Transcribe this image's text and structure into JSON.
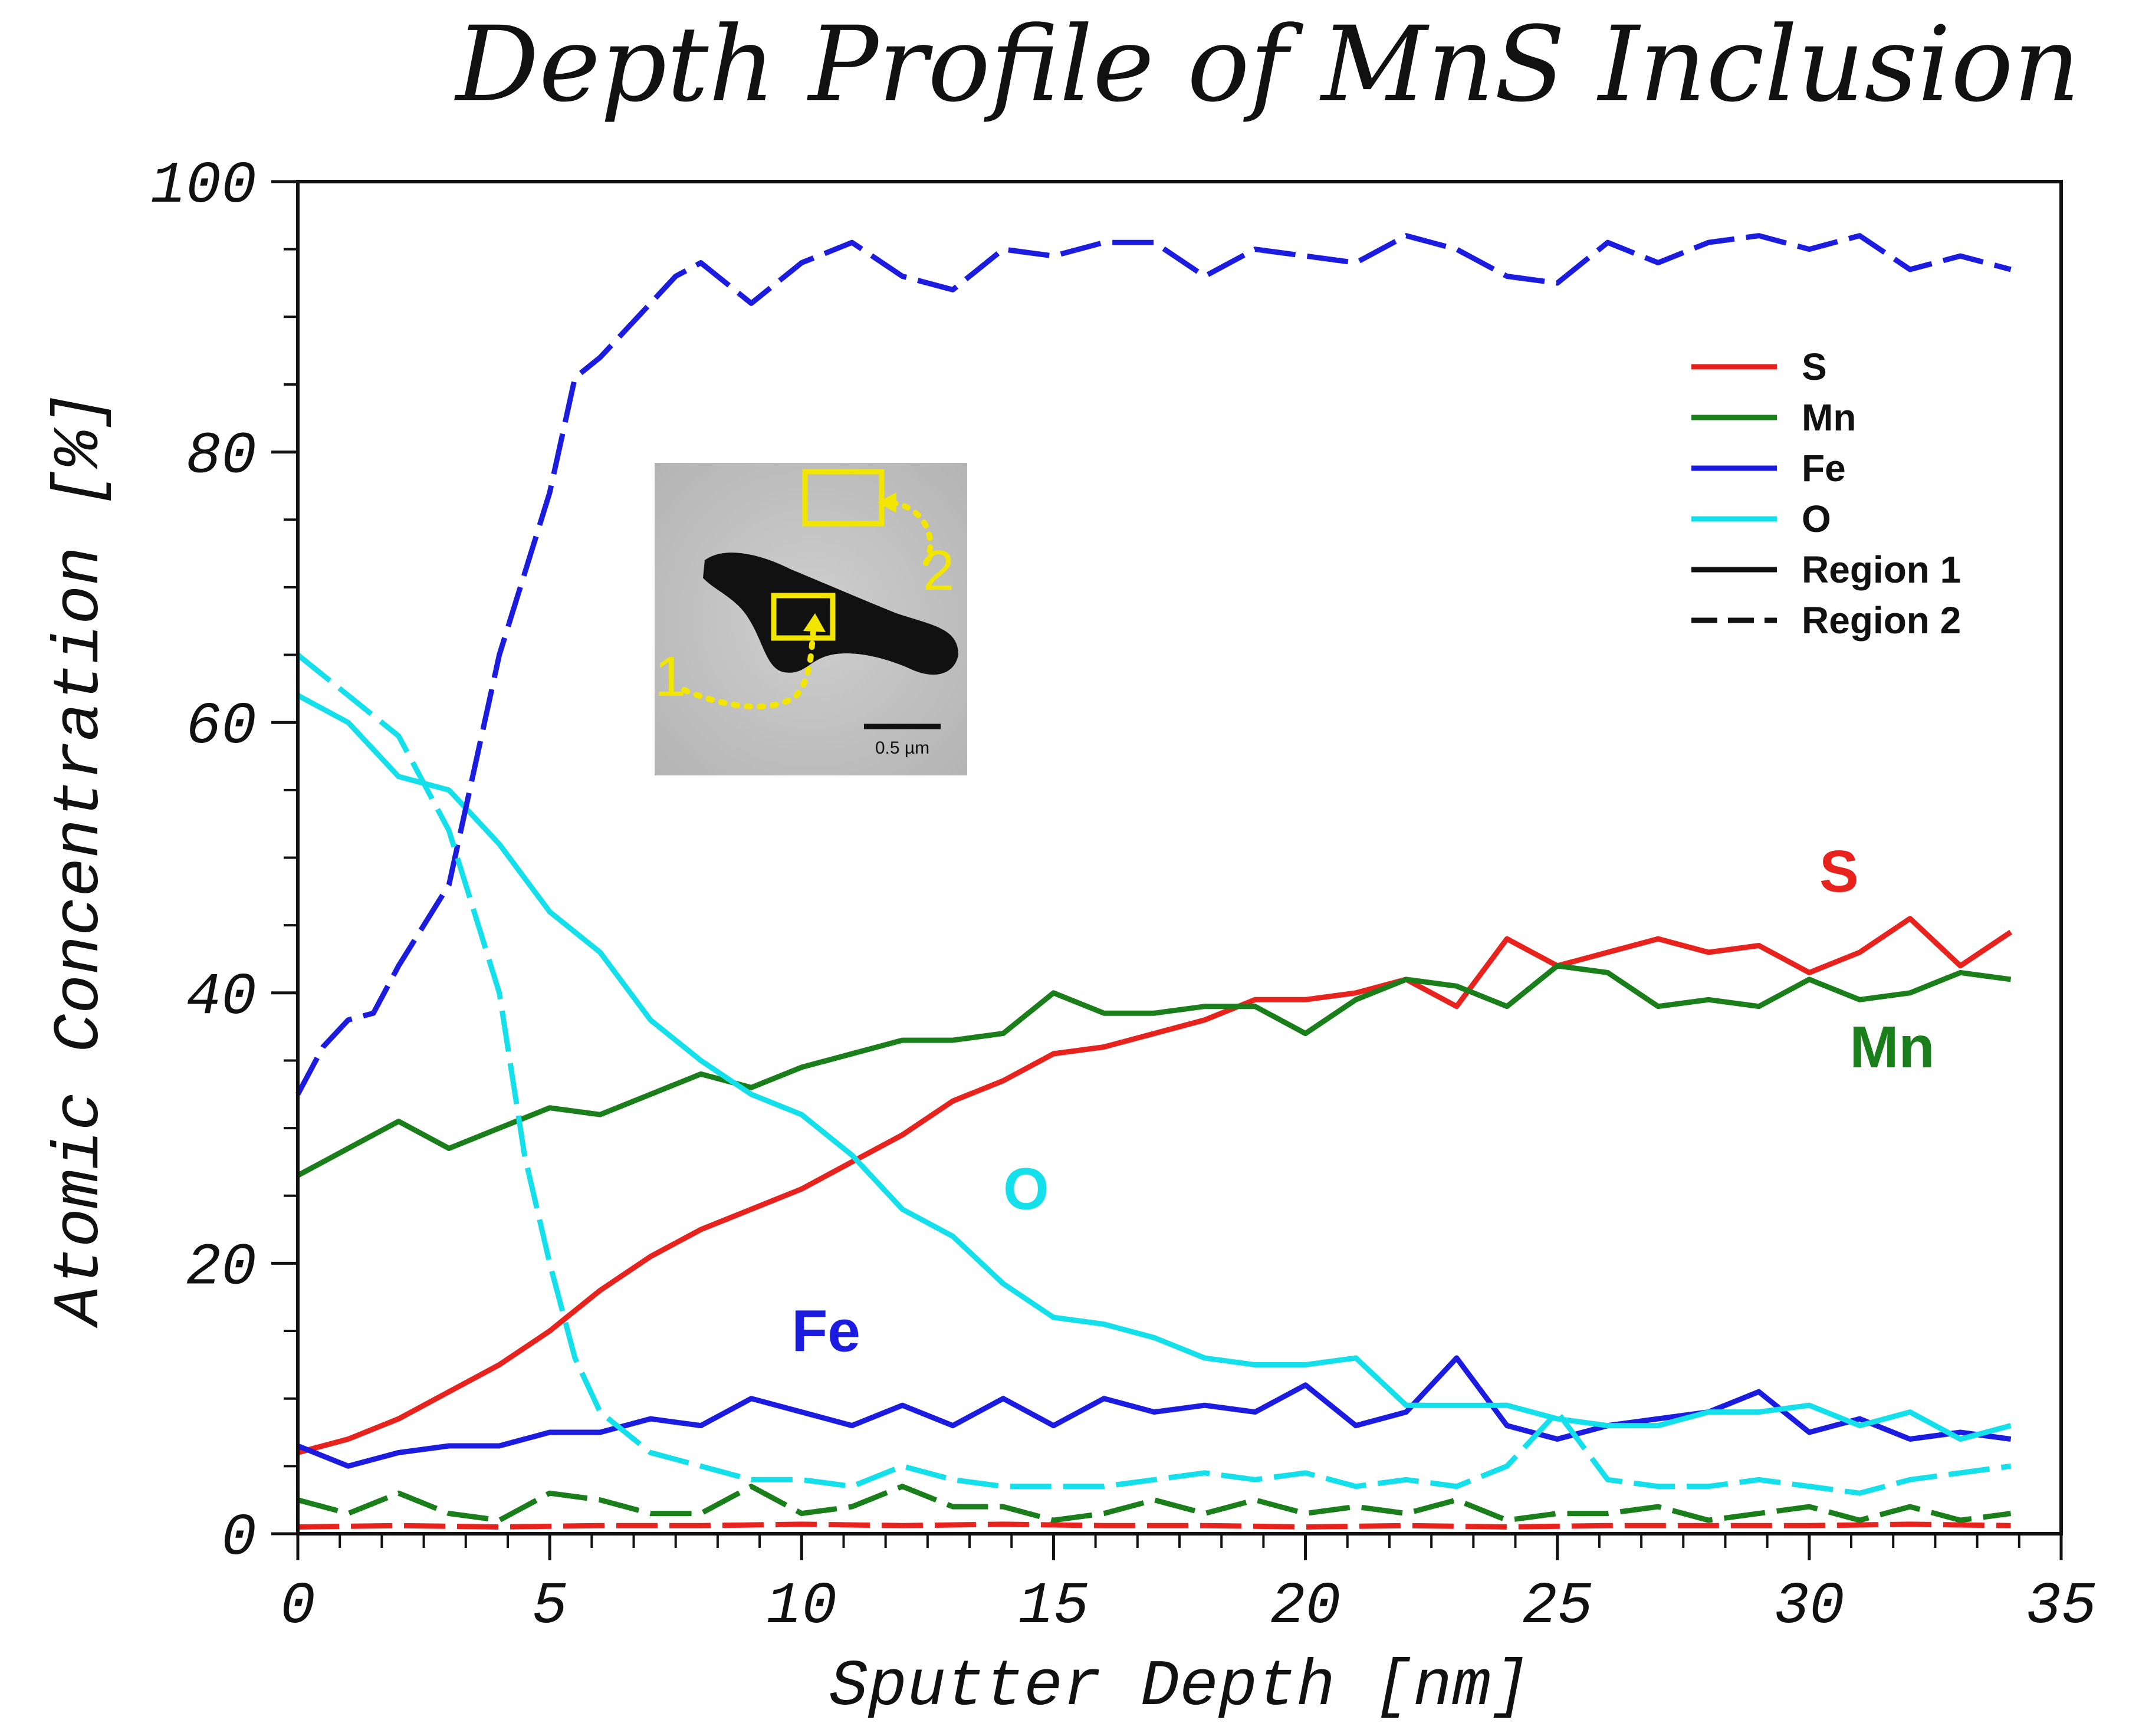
{
  "chart_data": {
    "type": "line",
    "title": "Depth Profile of MnS Inclusion",
    "xlabel": "Sputter Depth [nm]",
    "ylabel": "Atomic Concentration [%]",
    "xlim": [
      0,
      35
    ],
    "ylim": [
      0,
      100
    ],
    "xticks": [
      0,
      5,
      10,
      15,
      20,
      25,
      30,
      35
    ],
    "yticks": [
      0,
      20,
      40,
      60,
      80,
      100
    ],
    "grid": false,
    "legend_position": "top-right",
    "legend": [
      {
        "label": "S",
        "color": "#e8231e",
        "style": "solid"
      },
      {
        "label": "Mn",
        "color": "#1a7f1a",
        "style": "solid"
      },
      {
        "label": "Fe",
        "color": "#1c1ce0",
        "style": "solid"
      },
      {
        "label": "O",
        "color": "#13e0ea",
        "style": "solid"
      },
      {
        "label": "Region 1",
        "color": "#111111",
        "style": "solid"
      },
      {
        "label": "Region 2",
        "color": "#111111",
        "style": "dashed"
      }
    ],
    "annotations": [
      {
        "text": "S",
        "color": "#e8231e",
        "x": 30.2,
        "y": 47.5
      },
      {
        "text": "Mn",
        "color": "#1a7f1a",
        "x": 30.8,
        "y": 34.5
      },
      {
        "text": "O",
        "color": "#13e0ea",
        "x": 14.0,
        "y": 24.0
      },
      {
        "text": "Fe",
        "color": "#1c1ce0",
        "x": 9.8,
        "y": 13.5
      }
    ],
    "inset": {
      "labels": [
        "1",
        "2"
      ],
      "scale_bar": "0.5 µm"
    },
    "series": [
      {
        "element": "S",
        "region": "Region 1",
        "color": "#e8231e",
        "style": "solid",
        "x": [
          0,
          1,
          2,
          3,
          4,
          5,
          6,
          7,
          8,
          9,
          10,
          11,
          12,
          13,
          14,
          15,
          16,
          17,
          18,
          19,
          20,
          21,
          22,
          23,
          24,
          25,
          26,
          27,
          28,
          29,
          30,
          31,
          32,
          33,
          34
        ],
        "y": [
          6,
          7,
          8.5,
          10.5,
          12.5,
          15,
          18,
          20.5,
          22.5,
          24,
          25.5,
          27.5,
          29.5,
          32,
          33.5,
          35.5,
          36,
          37,
          38,
          39.5,
          39.5,
          40,
          41,
          39,
          44,
          42,
          43,
          44,
          43,
          43.5,
          41.5,
          43,
          45.5,
          42,
          44.5
        ]
      },
      {
        "element": "Mn",
        "region": "Region 1",
        "color": "#1a7f1a",
        "style": "solid",
        "x": [
          0,
          1,
          2,
          3,
          4,
          5,
          6,
          7,
          8,
          9,
          10,
          11,
          12,
          13,
          14,
          15,
          16,
          17,
          18,
          19,
          20,
          21,
          22,
          23,
          24,
          25,
          26,
          27,
          28,
          29,
          30,
          31,
          32,
          33,
          34
        ],
        "y": [
          26.5,
          28.5,
          30.5,
          28.5,
          30,
          31.5,
          31,
          32.5,
          34,
          33,
          34.5,
          35.5,
          36.5,
          36.5,
          37,
          40,
          38.5,
          38.5,
          39,
          39,
          37,
          39.5,
          41,
          40.5,
          39,
          42,
          41.5,
          39,
          39.5,
          39,
          41,
          39.5,
          40,
          41.5,
          41
        ]
      },
      {
        "element": "Fe",
        "region": "Region 1",
        "color": "#1c1ce0",
        "style": "solid",
        "x": [
          0,
          1,
          2,
          3,
          4,
          5,
          6,
          7,
          8,
          9,
          10,
          11,
          12,
          13,
          14,
          15,
          16,
          17,
          18,
          19,
          20,
          21,
          22,
          23,
          24,
          25,
          26,
          27,
          28,
          29,
          30,
          31,
          32,
          33,
          34
        ],
        "y": [
          6.5,
          5,
          6,
          6.5,
          6.5,
          7.5,
          7.5,
          8.5,
          8,
          10,
          9,
          8,
          9.5,
          8,
          10,
          8,
          10,
          9,
          9.5,
          9,
          11,
          8,
          9,
          13,
          8,
          7,
          8,
          8.5,
          9,
          10.5,
          7.5,
          8.5,
          7,
          7.5,
          7
        ]
      },
      {
        "element": "O",
        "region": "Region 1",
        "color": "#13e0ea",
        "style": "solid",
        "x": [
          0,
          1,
          2,
          3,
          4,
          5,
          6,
          7,
          8,
          9,
          10,
          11,
          12,
          13,
          14,
          15,
          16,
          17,
          18,
          19,
          20,
          21,
          22,
          23,
          24,
          25,
          26,
          27,
          28,
          29,
          30,
          31,
          32,
          33,
          34
        ],
        "y": [
          62,
          60,
          56,
          55,
          51,
          46,
          43,
          38,
          35,
          32.5,
          31,
          28,
          24,
          22,
          18.5,
          16,
          15.5,
          14.5,
          13,
          12.5,
          12.5,
          13,
          9.5,
          9.5,
          9.5,
          8.5,
          8,
          8,
          9,
          9,
          9.5,
          8,
          9,
          7,
          8
        ]
      },
      {
        "element": "S",
        "region": "Region 2",
        "color": "#e8231e",
        "style": "dashed",
        "x": [
          0,
          2,
          4,
          6,
          8,
          10,
          12,
          14,
          16,
          18,
          20,
          22,
          24,
          26,
          28,
          30,
          32,
          34
        ],
        "y": [
          0.5,
          0.6,
          0.5,
          0.6,
          0.6,
          0.7,
          0.6,
          0.7,
          0.6,
          0.6,
          0.5,
          0.6,
          0.5,
          0.6,
          0.6,
          0.6,
          0.7,
          0.6
        ]
      },
      {
        "element": "Mn",
        "region": "Region 2",
        "color": "#1a7f1a",
        "style": "dashed",
        "x": [
          0,
          1,
          2,
          3,
          4,
          5,
          6,
          7,
          8,
          9,
          10,
          11,
          12,
          13,
          14,
          15,
          16,
          17,
          18,
          19,
          20,
          21,
          22,
          23,
          24,
          25,
          26,
          27,
          28,
          29,
          30,
          31,
          32,
          33,
          34
        ],
        "y": [
          2.5,
          1.5,
          3,
          1.5,
          1,
          3,
          2.5,
          1.5,
          1.5,
          3.5,
          1.5,
          2,
          3.5,
          2,
          2,
          1,
          1.5,
          2.5,
          1.5,
          2.5,
          1.5,
          2,
          1.5,
          2.5,
          1,
          1.5,
          1.5,
          2,
          1,
          1.5,
          2,
          1,
          2,
          1,
          1.5
        ]
      },
      {
        "element": "Fe",
        "region": "Region 2",
        "color": "#1c1ce0",
        "style": "dashed",
        "x": [
          0,
          0.5,
          1,
          1.5,
          2,
          3,
          4,
          5,
          5.5,
          6,
          7,
          7.5,
          8,
          9,
          10,
          11,
          12,
          13,
          14,
          15,
          16,
          17,
          18,
          19,
          20,
          21,
          22,
          23,
          24,
          25,
          26,
          27,
          28,
          29,
          30,
          31,
          32,
          33,
          34
        ],
        "y": [
          32.5,
          36,
          38,
          38.5,
          42,
          48,
          65,
          77,
          85.5,
          87,
          91,
          93,
          94,
          91,
          94,
          95.5,
          93,
          92,
          95,
          94.5,
          95.5,
          95.5,
          93,
          95,
          94.5,
          94,
          96,
          95,
          93,
          92.5,
          95.5,
          94,
          95.5,
          96,
          95,
          96,
          93.5,
          94.5,
          93.5
        ]
      },
      {
        "element": "O",
        "region": "Region 2",
        "color": "#13e0ea",
        "style": "dashed",
        "x": [
          0,
          1,
          2,
          3,
          4,
          4.5,
          5,
          5.5,
          6,
          7,
          8,
          9,
          10,
          11,
          12,
          13,
          14,
          15,
          16,
          17,
          18,
          19,
          20,
          21,
          22,
          23,
          24,
          25,
          26,
          27,
          28,
          29,
          30,
          31,
          32,
          33,
          34
        ],
        "y": [
          65,
          62,
          59,
          52,
          40,
          28,
          20,
          13,
          9,
          6,
          5,
          4,
          4,
          3.5,
          5,
          4,
          3.5,
          3.5,
          3.5,
          4,
          4.5,
          4,
          4.5,
          3.5,
          4,
          3.5,
          5,
          9,
          4,
          3.5,
          3.5,
          4,
          3.5,
          3,
          4,
          4.5,
          5
        ]
      }
    ]
  }
}
